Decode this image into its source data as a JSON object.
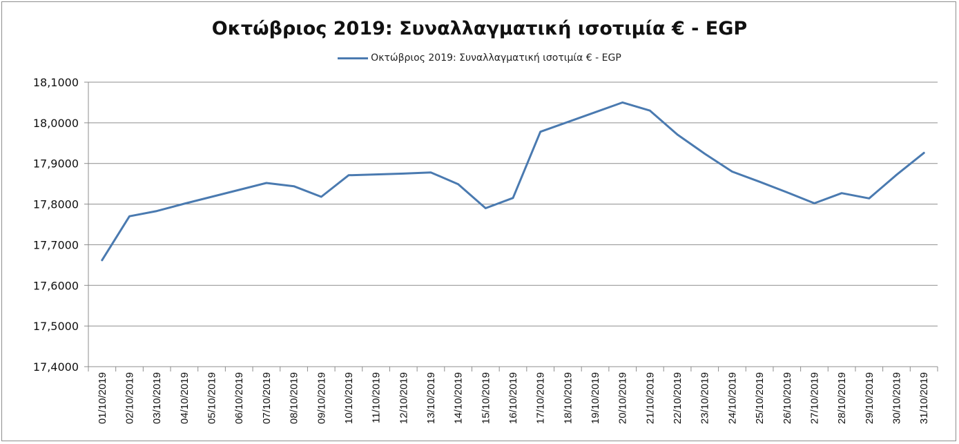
{
  "chart_data": {
    "type": "line",
    "title": "Οκτώβριος 2019: Συναλλαγματική ισοτιμία € - EGP",
    "xlabel": "",
    "ylabel": "",
    "ylim": [
      17.4,
      18.1
    ],
    "yticks": [
      "17,4000",
      "17,5000",
      "17,6000",
      "17,7000",
      "17,8000",
      "17,9000",
      "18,0000",
      "18,1000"
    ],
    "grid": true,
    "legend_position": "top-center",
    "categories": [
      "01/10/2019",
      "02/10/2019",
      "03/10/2019",
      "04/10/2019",
      "05/10/2019",
      "06/10/2019",
      "07/10/2019",
      "08/10/2019",
      "09/10/2019",
      "10/10/2019",
      "11/10/2019",
      "12/10/2019",
      "13/10/2019",
      "14/10/2019",
      "15/10/2019",
      "16/10/2019",
      "17/10/2019",
      "18/10/2019",
      "19/10/2019",
      "20/10/2019",
      "21/10/2019",
      "22/10/2019",
      "23/10/2019",
      "24/10/2019",
      "25/10/2019",
      "26/10/2019",
      "27/10/2019",
      "28/10/2019",
      "29/10/2019",
      "30/10/2019",
      "31/10/2019"
    ],
    "series": [
      {
        "name": "Οκτώβριος 2019: Συναλλαγματική ισοτιμία € - EGP",
        "color": "#4a7ab0",
        "values": [
          17.662,
          17.77,
          17.783,
          17.801,
          17.818,
          17.835,
          17.852,
          17.844,
          17.818,
          17.871,
          17.873,
          17.875,
          17.878,
          17.849,
          17.79,
          17.815,
          17.978,
          18.002,
          18.026,
          18.05,
          18.03,
          17.971,
          17.924,
          17.88,
          17.855,
          17.829,
          17.802,
          17.827,
          17.814,
          17.872,
          17.926
        ]
      }
    ]
  }
}
